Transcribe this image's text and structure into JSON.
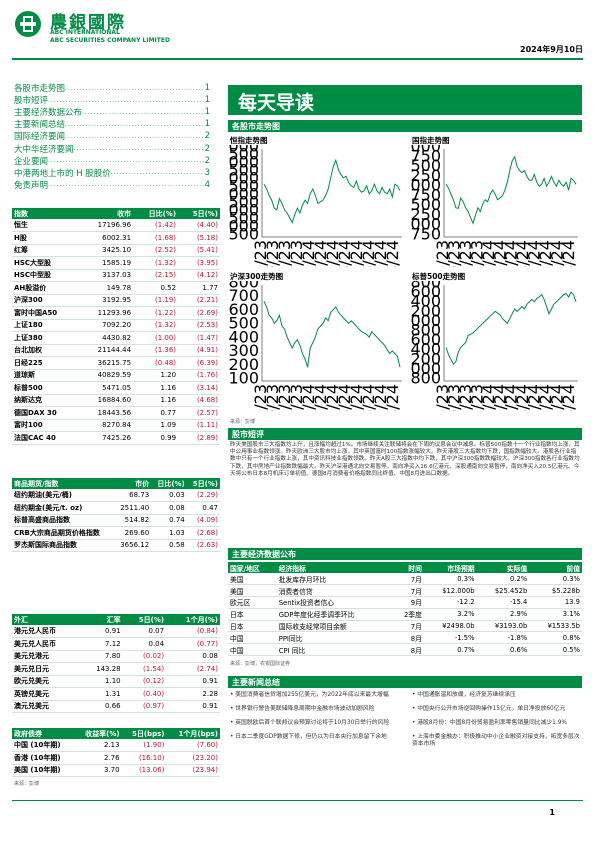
{
  "header": {
    "brand_cn": "農銀國際",
    "brand_en1": "ABC INTERNATIONAL",
    "brand_en2": "ABC SECURITIES COMPANY LIMITED",
    "date": "2024年9月10日"
  },
  "toc": [
    {
      "label": "各股市走势图",
      "page": "1"
    },
    {
      "label": "股市短评",
      "page": "1"
    },
    {
      "label": "主要经济数据公布",
      "page": "1"
    },
    {
      "label": "主要新闻总结",
      "page": "1"
    },
    {
      "label": "国际经济要闻",
      "page": "2"
    },
    {
      "label": "大中华经济要闻",
      "page": "2"
    },
    {
      "label": "企业要闻",
      "page": "2"
    },
    {
      "label": "中港两地上市的 H 股股价",
      "page": "3"
    },
    {
      "label": "免责声明",
      "page": "4"
    }
  ],
  "title": "每天导读",
  "charts_section": "各股市走势图",
  "charts": [
    {
      "title": "恒指走势图",
      "yticks": [
        "20,000",
        "19,500",
        "19,000",
        "18,500",
        "18,000",
        "17,500",
        "17,000",
        "16,500",
        "16,000",
        "15,500",
        "15,000",
        "14,500"
      ],
      "ymin": 14500,
      "ymax": 20000,
      "values": [
        17800,
        17500,
        17100,
        16800,
        16300,
        16200,
        16900,
        16600,
        16200,
        16000,
        15700,
        15400,
        15900,
        16300,
        16000,
        16500,
        16800,
        16600,
        17200,
        17500,
        17100,
        16600,
        16700,
        16800,
        17100,
        17500,
        18200,
        18900,
        19300,
        18700,
        18400,
        18200,
        18300,
        17900,
        17700,
        17600,
        18000,
        17500,
        17300,
        17400,
        17700,
        17200,
        17400,
        17800,
        17400,
        17200,
        17600,
        17300,
        17200,
        17500,
        17000,
        17800,
        17700,
        17400
      ]
    },
    {
      "title": "国指走势图",
      "yticks": [
        "7,000",
        "6,750",
        "6,500",
        "6,250",
        "6,000",
        "5,750",
        "5,500",
        "5,250",
        "5,000",
        "4,750"
      ],
      "ymin": 4750,
      "ymax": 7000,
      "values": [
        6100,
        6000,
        5850,
        5700,
        5500,
        5480,
        5750,
        5650,
        5500,
        5400,
        5250,
        5100,
        5300,
        5500,
        5400,
        5600,
        5700,
        5650,
        5850,
        5950,
        5850,
        5700,
        5750,
        5800,
        5950,
        6150,
        6450,
        6700,
        6800,
        6550,
        6450,
        6400,
        6450,
        6300,
        6200,
        6200,
        6350,
        6150,
        6050,
        6100,
        6250,
        6050,
        6150,
        6300,
        6150,
        6050,
        6200,
        6100,
        6050,
        6150,
        5950,
        6250,
        6200,
        6100
      ]
    },
    {
      "title": "沪深300走势图",
      "yticks": [
        "3,800",
        "3,700",
        "3,600",
        "3,500",
        "3,400",
        "3,300",
        "3,200",
        "3,100"
      ],
      "ymin": 3100,
      "ymax": 3800,
      "values": [
        3680,
        3640,
        3580,
        3560,
        3520,
        3540,
        3580,
        3500,
        3480,
        3420,
        3380,
        3340,
        3380,
        3400,
        3360,
        3300,
        3260,
        3200,
        3340,
        3380,
        3420,
        3480,
        3500,
        3520,
        3560,
        3540,
        3600,
        3620,
        3640,
        3600,
        3580,
        3560,
        3540,
        3520,
        3540,
        3520,
        3500,
        3480,
        3460,
        3450,
        3440,
        3420,
        3460,
        3440,
        3420,
        3400,
        3380,
        3360,
        3330,
        3300,
        3320,
        3300,
        3280,
        3200
      ]
    },
    {
      "title": "标普500走势图",
      "yticks": [
        "5,800",
        "5,600",
        "5,400",
        "5,200",
        "5,000",
        "4,800",
        "4,600",
        "4,400",
        "4,200",
        "4,000",
        "3,800"
      ],
      "ymin": 3800,
      "ymax": 5800,
      "values": [
        4500,
        4350,
        4250,
        4150,
        4200,
        4400,
        4500,
        4550,
        4600,
        4750,
        4770,
        4800,
        4850,
        4900,
        4950,
        5000,
        5050,
        5100,
        5150,
        5200,
        5250,
        5220,
        5180,
        5100,
        5050,
        5000,
        5100,
        5200,
        5300,
        5250,
        5300,
        5350,
        5300,
        5400,
        5450,
        5500,
        5450,
        5520,
        5550,
        5600,
        5500,
        5350,
        5200,
        5300,
        5400,
        5450,
        5500,
        5550,
        5600,
        5620,
        5550,
        5650,
        5600,
        5450
      ]
    }
  ],
  "chart_xticks": [
    "09/23",
    "10/23",
    "11/23",
    "12/23",
    "01/24",
    "02/24",
    "03/24",
    "04/24",
    "05/24",
    "06/24",
    "07/24",
    "08/24"
  ],
  "chart_source": "来源：彭博",
  "market_table": {
    "headers": [
      "指数",
      "收市",
      "日比(%)",
      "5日(%)"
    ],
    "rows": [
      [
        "恒生",
        "17196.96",
        "(1.42)",
        "(4.40)"
      ],
      [
        "H股",
        "6002.31",
        "(1.68)",
        "(5.18)"
      ],
      [
        "红筹",
        "3425.10",
        "(2.52)",
        "(5.41)"
      ],
      [
        "HSC大型股",
        "1585.19",
        "(1.32)",
        "(3.95)"
      ],
      [
        "HSC中型股",
        "3137.03",
        "(2.15)",
        "(4.12)"
      ],
      [
        "AH股溢价",
        "149.78",
        "0.52",
        "1.77"
      ],
      [
        "沪深300",
        "3192.95",
        "(1.19)",
        "(2.21)"
      ],
      [
        "富时中国A50",
        "11293.96",
        "(1.22)",
        "(2.69)"
      ],
      [
        "上证180",
        "7092.20",
        "(1.32)",
        "(2.53)"
      ],
      [
        "上证380",
        "4430.82",
        "(1.00)",
        "(1.47)"
      ],
      [
        "台北加权",
        "21144.44",
        "(1.36)",
        "(4.91)"
      ],
      [
        "日经225",
        "36215.75",
        "(0.48)",
        "(6.39)"
      ],
      [
        "道琼斯",
        "40829.59",
        "1.20",
        "(1.76)"
      ],
      [
        "标普500",
        "5471.05",
        "1.16",
        "(3.14)"
      ],
      [
        "纳斯达克",
        "16884.60",
        "1.16",
        "(4.68)"
      ],
      [
        "德国DAX 30",
        "18443.56",
        "0.77",
        "(2.57)"
      ],
      [
        "富时100",
        "8270.84",
        "1.09",
        "(1.11)"
      ],
      [
        "法国CAC 40",
        "7425.26",
        "0.99",
        "(2.89)"
      ]
    ]
  },
  "commodity_table": {
    "headers": [
      "商品期货/指数",
      "市价",
      "日比(%)",
      "5日(%)"
    ],
    "rows": [
      [
        "纽约期油(美元/桶)",
        "68.73",
        "0.03",
        "(2.29)"
      ],
      [
        "纽约期金(美元/t. oz)",
        "2511.40",
        "0.08",
        "0.47"
      ],
      [
        "标普高盛商品指数",
        "514.82",
        "0.74",
        "(4.09)"
      ],
      [
        "CRB大宗商品期货价格指数",
        "269.60",
        "1.03",
        "(2.68)"
      ],
      [
        "罗杰斯国际商品指数",
        "3656.12",
        "0.58",
        "(2.63)"
      ]
    ]
  },
  "fx_table": {
    "headers": [
      "外汇",
      "汇率",
      "5日(%)",
      "1个月(%)"
    ],
    "rows": [
      [
        "港元兑人民币",
        "0.91",
        "0.07",
        "(0.84)"
      ],
      [
        "美元兑人民币",
        "7.12",
        "0.04",
        "(0.77)"
      ],
      [
        "美元兑港元",
        "7.80",
        "(0.02)",
        "0.08"
      ],
      [
        "美元兑日元",
        "143.28",
        "(1.54)",
        "(2.74)"
      ],
      [
        "欧元兑美元",
        "1.10",
        "(0.12)",
        "0.91"
      ],
      [
        "英镑兑美元",
        "1.31",
        "(0.40)",
        "2.28"
      ],
      [
        "澳元兑美元",
        "0.66",
        "(0.97)",
        "0.91"
      ]
    ]
  },
  "bond_table": {
    "headers": [
      "政府债券",
      "收益率(%)",
      "5日(bps)",
      "1个月(bps)"
    ],
    "rows": [
      [
        "中国 (10年期)",
        "2.13",
        "(1.90)",
        "(7.60)"
      ],
      [
        "香港 (10年期)",
        "2.76",
        "(16.10)",
        "(23.20)"
      ],
      [
        "美国 (10年期)",
        "3.70",
        "(13.06)",
        "(23.94)"
      ]
    ]
  },
  "tables_source": "来源：彭博",
  "commentary": {
    "heading": "股市短评",
    "text": "昨天美国股市三大指数均上升，且涨幅均超过1%。市场继续关注联储将会在下周的议息会议中减息。标普500指数十一个行业指数均上涨，其中公用事业指数领涨。昨天欧洲三大股市均上涨，其中英国富时100指数涨幅较大。昨天港股三大指数均下跌，国指跌幅较大。港股各行业指数中只有一个行业指数上涨，其中资讯科技业指数领跌。昨天A股三大指数中均下跌，其中沪深300指数跌幅较大。沪深300指数各行业指数均下跌，其中房地产业指数跌幅最大。昨天沪深港通北向交易暂停，南向净买入16.6亿港元，深股通南向交易暂停，南向净买入20.5亿港元。今天将公布日本8月机床订单初值、德国8月消费者价格指数同比终值、中国8月进出口数据。"
  },
  "economic": {
    "heading": "主要经济数据公布",
    "headers": [
      "国家/地区",
      "经济指标",
      "时间",
      "市场预期",
      "实际值",
      "前值"
    ],
    "rows": [
      [
        "美国",
        "批发库存月环比",
        "7月",
        "0.3%",
        "0.2%",
        "0.3%"
      ],
      [
        "美国",
        "消费者信贷",
        "7月",
        "$12.000b",
        "$25.452b",
        "$5.228b"
      ],
      [
        "欧元区",
        "Sentix投资者信心",
        "9月",
        "-12.2",
        "-15.4",
        "13.9"
      ],
      [
        "日本",
        "GDP年度化经季调季环比",
        "2季度",
        "3.2%",
        "2.9%",
        "3.1%"
      ],
      [
        "日本",
        "国际收支经常项目余额",
        "7月",
        "¥2498.0b",
        "¥3193.0b",
        "¥1533.5b"
      ],
      [
        "中国",
        "PPI同比",
        "8月",
        "-1.5%",
        "-1.8%",
        "0.8%"
      ],
      [
        "中国",
        "CPI 同比",
        "8月",
        "0.7%",
        "0.6%",
        "0.5%"
      ]
    ],
    "source": "来源：彭博，农银国际证券"
  },
  "news": {
    "heading": "主要新闻总结",
    "left": [
      "美国消费者信贷增加255亿美元，为2022年底以来最大增幅",
      "世界银行警告美联储降息周期中金融市场波动加剧风险",
      "英国脱欧后首个联邦议会预算讨论将于10月30日举行的风险",
      "日本二季度GDP数据下修，但仍以为日本央行加息留下余地"
    ],
    "right": [
      "中国通胀温和放缓，经济复苏继续承压",
      "中国央行公开市场逆回购操作15亿元，单日净投放60亿元",
      "港股8月份：中国8月份贸易盈利率零售销量同比减少1.9%",
      "上海市委金融办：积极推动中小企业融资对接支持，拓宽多层次资本市场"
    ]
  },
  "page_number": "1"
}
